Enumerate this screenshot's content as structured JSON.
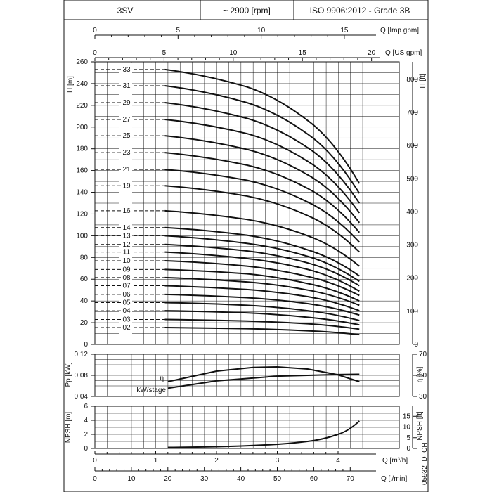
{
  "header": {
    "model": "3SV",
    "speed": "~ 2900 [rpm]",
    "standard": "ISO 9906:2012 - Grade 3B"
  },
  "footer_code": "05932_D_CH",
  "chart_data": [
    {
      "type": "line",
      "xlabel_top1": "Q [Imp gpm]",
      "xticks_top1": [
        "0",
        "5",
        "10",
        "15"
      ],
      "xlabel_top2": "Q [US gpm]",
      "xticks_top2": [
        "0",
        "5",
        "10",
        "15",
        "20"
      ],
      "ylabel": "H [m]",
      "ylim": [
        0,
        260
      ],
      "yticks": [
        "0",
        "20",
        "40",
        "60",
        "80",
        "100",
        "120",
        "140",
        "160",
        "180",
        "200",
        "220",
        "240",
        "260"
      ],
      "ylabel_right": "H [ft]",
      "yticks_right": [
        "0",
        "100",
        "200",
        "300",
        "400",
        "500",
        "600",
        "700",
        "800"
      ],
      "series": [
        {
          "name": "02",
          "values": [
            [
              0,
              15.5
            ],
            [
              1.15,
              15.5
            ],
            [
              2.5,
              14.5
            ],
            [
              3.5,
              12.5
            ],
            [
              4.35,
              9
            ]
          ]
        },
        {
          "name": "03",
          "values": [
            [
              0,
              23
            ],
            [
              1.15,
              23
            ],
            [
              2.5,
              21.5
            ],
            [
              3.5,
              19
            ],
            [
              4.35,
              14
            ]
          ]
        },
        {
          "name": "04",
          "values": [
            [
              0,
              31
            ],
            [
              1.15,
              31
            ],
            [
              2.5,
              29
            ],
            [
              3.5,
              25
            ],
            [
              4.35,
              18
            ]
          ]
        },
        {
          "name": "05",
          "values": [
            [
              0,
              38.5
            ],
            [
              1.15,
              38.5
            ],
            [
              2.5,
              36
            ],
            [
              3.5,
              31
            ],
            [
              4.35,
              22
            ]
          ]
        },
        {
          "name": "06",
          "values": [
            [
              0,
              46
            ],
            [
              1.15,
              46
            ],
            [
              2.5,
              43
            ],
            [
              3.5,
              37.5
            ],
            [
              4.35,
              27
            ]
          ]
        },
        {
          "name": "07",
          "values": [
            [
              0,
              54
            ],
            [
              1.15,
              54
            ],
            [
              2.5,
              50.5
            ],
            [
              3.5,
              44
            ],
            [
              4.35,
              31
            ]
          ]
        },
        {
          "name": "08",
          "values": [
            [
              0,
              61.5
            ],
            [
              1.15,
              61.5
            ],
            [
              2.5,
              57.5
            ],
            [
              3.5,
              50
            ],
            [
              4.35,
              36
            ]
          ]
        },
        {
          "name": "09",
          "values": [
            [
              0,
              69
            ],
            [
              1.15,
              69
            ],
            [
              2.5,
              65
            ],
            [
              3.5,
              56
            ],
            [
              4.35,
              40
            ]
          ]
        },
        {
          "name": "10",
          "values": [
            [
              0,
              77
            ],
            [
              1.15,
              77
            ],
            [
              2.5,
              72
            ],
            [
              3.5,
              62.5
            ],
            [
              4.35,
              45
            ]
          ]
        },
        {
          "name": "11",
          "values": [
            [
              0,
              85
            ],
            [
              1.15,
              85
            ],
            [
              2.5,
              79
            ],
            [
              3.5,
              69
            ],
            [
              4.35,
              49
            ]
          ]
        },
        {
          "name": "12",
          "values": [
            [
              0,
              92
            ],
            [
              1.15,
              92
            ],
            [
              2.5,
              86
            ],
            [
              3.5,
              75
            ],
            [
              4.35,
              54
            ]
          ]
        },
        {
          "name": "13",
          "values": [
            [
              0,
              100
            ],
            [
              1.15,
              100
            ],
            [
              2.5,
              93
            ],
            [
              3.5,
              81
            ],
            [
              4.35,
              58
            ]
          ]
        },
        {
          "name": "14",
          "values": [
            [
              0,
              107.5
            ],
            [
              1.15,
              107.5
            ],
            [
              2.5,
              100.5
            ],
            [
              3.5,
              87
            ],
            [
              4.35,
              63
            ]
          ]
        },
        {
          "name": "16",
          "values": [
            [
              0,
              123
            ],
            [
              1.15,
              123
            ],
            [
              2.5,
              115
            ],
            [
              3.5,
              100
            ],
            [
              4.35,
              72
            ]
          ]
        },
        {
          "name": "19",
          "values": [
            [
              0,
              146
            ],
            [
              1.15,
              146
            ],
            [
              2.5,
              136.5
            ],
            [
              3.5,
              118.5
            ],
            [
              4.35,
              85
            ]
          ]
        },
        {
          "name": "21",
          "values": [
            [
              0,
              161
            ],
            [
              1.15,
              161
            ],
            [
              2.5,
              151
            ],
            [
              3.5,
              131
            ],
            [
              4.35,
              94
            ]
          ]
        },
        {
          "name": "23",
          "values": [
            [
              0,
              176.5
            ],
            [
              1.15,
              176.5
            ],
            [
              2.5,
              165
            ],
            [
              3.5,
              143.5
            ],
            [
              4.35,
              103
            ]
          ]
        },
        {
          "name": "25",
          "values": [
            [
              0,
              192
            ],
            [
              1.15,
              192
            ],
            [
              2.5,
              179.5
            ],
            [
              3.5,
              156
            ],
            [
              4.35,
              112
            ]
          ]
        },
        {
          "name": "27",
          "values": [
            [
              0,
              207
            ],
            [
              1.15,
              207
            ],
            [
              2.5,
              194
            ],
            [
              3.5,
              168.5
            ],
            [
              4.35,
              121
            ]
          ]
        },
        {
          "name": "29",
          "values": [
            [
              0,
              222.5
            ],
            [
              1.15,
              222.5
            ],
            [
              2.5,
              208
            ],
            [
              3.5,
              181
            ],
            [
              4.35,
              130
            ]
          ]
        },
        {
          "name": "31",
          "values": [
            [
              0,
              238
            ],
            [
              1.15,
              238
            ],
            [
              2.5,
              222.5
            ],
            [
              3.5,
              193.5
            ],
            [
              4.35,
              139
            ]
          ]
        },
        {
          "name": "33",
          "values": [
            [
              0,
              253
            ],
            [
              1.15,
              253
            ],
            [
              2.5,
              237
            ],
            [
              3.5,
              206
            ],
            [
              4.35,
              148
            ]
          ]
        }
      ]
    },
    {
      "type": "line",
      "ylabel": "Pp [kW]",
      "ylim": [
        0.04,
        0.12
      ],
      "yticks": [
        "0,04",
        "0,08",
        "0,12"
      ],
      "ylabel_right": "η [%]",
      "ylim_right": [
        30,
        70
      ],
      "yticks_right": [
        "30",
        "50",
        "70"
      ],
      "series": [
        {
          "name": "η",
          "axis": "right",
          "values": [
            [
              1.2,
              44
            ],
            [
              2,
              54
            ],
            [
              2.6,
              57.5
            ],
            [
              3,
              58
            ],
            [
              3.5,
              56
            ],
            [
              4,
              50.5
            ],
            [
              4.35,
              44
            ]
          ]
        },
        {
          "name": "kW/stage",
          "axis": "left",
          "values": [
            [
              1.2,
              0.0555
            ],
            [
              2,
              0.0695
            ],
            [
              3,
              0.0785
            ],
            [
              4,
              0.0815
            ],
            [
              4.35,
              0.082
            ]
          ]
        }
      ]
    },
    {
      "type": "line",
      "ylabel": "NPSH [m]",
      "ylim": [
        0,
        6
      ],
      "yticks": [
        "0",
        "2",
        "4",
        "6"
      ],
      "ylabel_right": "NPSH [ft]",
      "yticks_right": [
        "0",
        "5",
        "10",
        "15"
      ],
      "xlabel": "Q [m³/h]",
      "xticks": [
        "0",
        "1",
        "2",
        "3",
        "4"
      ],
      "xlabel_bottom": "Q [l/min]",
      "xticks_bottom": [
        "0",
        "10",
        "20",
        "30",
        "40",
        "50",
        "60",
        "70"
      ],
      "series": [
        {
          "name": "NPSH",
          "values": [
            [
              1.2,
              0.15
            ],
            [
              2,
              0.25
            ],
            [
              2.8,
              0.5
            ],
            [
              3.5,
              1.0
            ],
            [
              4,
              2.0
            ],
            [
              4.35,
              3.9
            ]
          ]
        }
      ]
    }
  ]
}
